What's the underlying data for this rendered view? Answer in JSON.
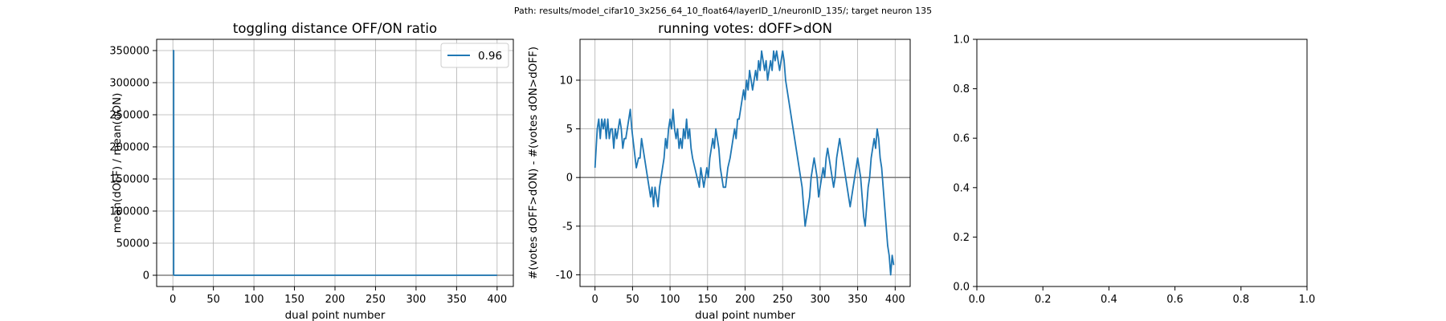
{
  "suptitle": "Path: results/model_cifar10_3x256_64_10_float64/layerID_1/neuronID_135/; target neuron 135",
  "colors": {
    "line": "#1f77b4",
    "zero_line": "#808080",
    "grid": "#b0b0b0",
    "axis": "#000000"
  },
  "chart_data": [
    {
      "type": "line",
      "title": "toggling distance OFF/ON ratio",
      "xlabel": "dual point number",
      "ylabel": "mean(dOFF) / mean(dON)",
      "xlim": [
        -20,
        420
      ],
      "ylim": [
        -17500,
        367500
      ],
      "xticks": [
        0,
        50,
        100,
        150,
        200,
        250,
        300,
        350,
        400
      ],
      "yticks": [
        0,
        50000,
        100000,
        150000,
        200000,
        250000,
        300000,
        350000
      ],
      "grid": true,
      "hline": 0,
      "legend": {
        "entries": [
          "0.96"
        ],
        "placement": "upper right"
      },
      "series": [
        {
          "name": "0.96",
          "x": [
            0,
            1,
            1,
            2,
            3,
            4,
            5,
            10,
            50,
            100,
            150,
            200,
            250,
            300,
            350,
            400
          ],
          "y": [
            350000,
            350000,
            500,
            1,
            1,
            1,
            1,
            1,
            1,
            1,
            1,
            1,
            1,
            1,
            1,
            1
          ]
        }
      ]
    },
    {
      "type": "line",
      "title": "running votes: dOFF>dON",
      "xlabel": "dual point number",
      "ylabel": "#(votes dOFF>dON) - #(votes dON>dOFF)",
      "xlim": [
        -20,
        420
      ],
      "ylim": [
        -11.2,
        14.2
      ],
      "xticks": [
        0,
        50,
        100,
        150,
        200,
        250,
        300,
        350,
        400
      ],
      "yticks": [
        -10,
        -5,
        0,
        5,
        10
      ],
      "grid": true,
      "hline": 0,
      "series": [
        {
          "name": "",
          "x": [
            0,
            3,
            5,
            7,
            9,
            11,
            13,
            15,
            17,
            19,
            21,
            23,
            25,
            27,
            29,
            31,
            33,
            35,
            37,
            39,
            41,
            43,
            45,
            47,
            49,
            52,
            55,
            58,
            60,
            62,
            64,
            66,
            68,
            70,
            72,
            74,
            76,
            78,
            80,
            82,
            84,
            86,
            88,
            90,
            92,
            94,
            96,
            98,
            100,
            102,
            104,
            106,
            108,
            110,
            112,
            114,
            116,
            118,
            120,
            122,
            124,
            126,
            128,
            130,
            133,
            136,
            139,
            141,
            143,
            145,
            147,
            149,
            151,
            153,
            155,
            157,
            159,
            161,
            163,
            165,
            167,
            169,
            171,
            174,
            177,
            180,
            182,
            184,
            186,
            188,
            190,
            192,
            194,
            196,
            198,
            200,
            202,
            204,
            206,
            208,
            210,
            212,
            214,
            216,
            218,
            220,
            222,
            224,
            226,
            228,
            230,
            232,
            234,
            236,
            238,
            240,
            242,
            244,
            246,
            248,
            250,
            252,
            254,
            256,
            258,
            260,
            262,
            264,
            266,
            268,
            270,
            272,
            274,
            276,
            278,
            280,
            282,
            284,
            286,
            288,
            290,
            292,
            294,
            296,
            298,
            300,
            302,
            304,
            306,
            308,
            310,
            312,
            314,
            316,
            318,
            320,
            322,
            324,
            326,
            328,
            330,
            332,
            334,
            336,
            338,
            340,
            342,
            344,
            346,
            348,
            350,
            352,
            354,
            356,
            358,
            360,
            362,
            364,
            366,
            368,
            370,
            372,
            374,
            376,
            378,
            380,
            382,
            384,
            386,
            388,
            390,
            392,
            394,
            396,
            398
          ],
          "y": [
            1,
            5,
            6,
            4,
            6,
            5,
            6,
            4,
            6,
            4,
            5,
            5,
            3,
            5,
            4,
            5,
            6,
            5,
            3,
            4,
            4,
            5,
            6,
            7,
            5,
            3,
            1,
            2,
            2,
            4,
            3,
            2,
            1,
            0,
            -1,
            -2,
            -1,
            -3,
            -1,
            -2,
            -3,
            -1,
            0,
            1,
            2,
            4,
            3,
            5,
            6,
            5,
            7,
            5,
            4,
            5,
            3,
            4,
            3,
            5,
            4,
            6,
            4,
            5,
            3,
            2,
            1,
            0,
            -1,
            1,
            0,
            -1,
            0,
            1,
            0,
            2,
            3,
            4,
            3,
            5,
            4,
            3,
            1,
            0,
            -1,
            -1,
            1,
            2,
            3,
            4,
            5,
            4,
            6,
            6,
            7,
            8,
            9,
            8,
            10,
            9,
            11,
            10,
            9,
            10,
            11,
            10,
            12,
            11,
            13,
            12,
            11,
            12,
            10,
            11,
            12,
            11,
            13,
            12,
            13,
            12,
            11,
            12,
            13,
            12,
            10,
            9,
            8,
            7,
            6,
            5,
            4,
            3,
            2,
            1,
            0,
            -1,
            -3,
            -5,
            -4,
            -3,
            -2,
            0,
            1,
            2,
            1,
            0,
            -2,
            -1,
            0,
            1,
            0,
            2,
            3,
            2,
            1,
            0,
            -1,
            0,
            2,
            3,
            4,
            3,
            2,
            1,
            0,
            -1,
            -2,
            -3,
            -2,
            -1,
            0,
            1,
            2,
            1,
            0,
            -2,
            -4,
            -5,
            -3,
            -1,
            0,
            2,
            3,
            4,
            3,
            5,
            4,
            2,
            1,
            -1,
            -3,
            -5,
            -7,
            -8,
            -10,
            -8,
            -9
          ]
        }
      ]
    },
    {
      "type": "line",
      "title": "",
      "xlabel": "",
      "ylabel": "",
      "xlim": [
        0,
        1
      ],
      "ylim": [
        0,
        1
      ],
      "xticks": [
        0.0,
        0.2,
        0.4,
        0.6,
        0.8,
        1.0
      ],
      "yticks": [
        0.0,
        0.2,
        0.4,
        0.6,
        0.8,
        1.0
      ],
      "tick_format_decimals": 1,
      "grid": false,
      "series": []
    }
  ]
}
